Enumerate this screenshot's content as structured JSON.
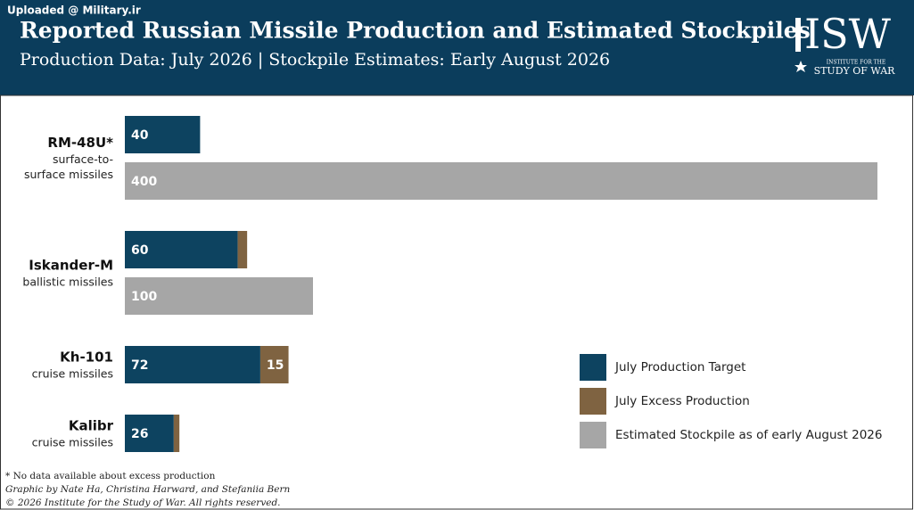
{
  "chart_data": {
    "type": "bar",
    "orientation": "horizontal",
    "stacked": true,
    "watermark": "Uploaded @ Military.ir",
    "title": "Reported Russian Missile Production and Estimated Stockpiles",
    "subtitle": "Production Data: July 2026 | Stockpile Estimates: Early August 2026",
    "logo": {
      "mark": "ISW",
      "line1": "INSTITUTE FOR THE",
      "line2": "STUDY OF WAR"
    },
    "categories": [
      "RM-48U*",
      "Iskander-M",
      "Kh-101",
      "Kalibr"
    ],
    "descriptions": [
      [
        "surface-to-",
        "surface missiles"
      ],
      [
        "ballistic missiles"
      ],
      [
        "cruise missiles"
      ],
      [
        "cruise missiles"
      ]
    ],
    "series": [
      {
        "name": "July Production Target",
        "color": "#0d4360",
        "values": [
          40,
          60,
          72,
          26
        ]
      },
      {
        "name": "July Excess Production",
        "color": "#7f6341",
        "values": [
          null,
          5,
          15,
          3
        ]
      },
      {
        "name": "Estimated Stockpile as of early August 2026",
        "color": "#a6a6a6",
        "values": [
          400,
          100,
          null,
          null
        ],
        "separate_bar": true
      }
    ],
    "legend": "bottom-right",
    "notes": [
      "* No data available about excess production",
      "Graphic by Nate Ha, Christina Harward, and Stefaniia Bern",
      "© 2026 Institute for the Study of War. All rights reserved."
    ]
  }
}
